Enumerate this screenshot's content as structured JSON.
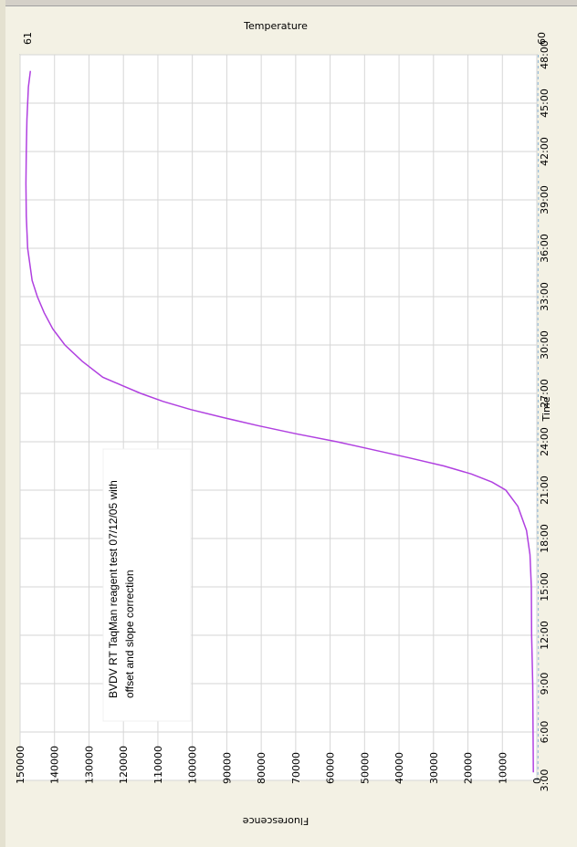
{
  "chart_data": {
    "type": "line",
    "orientation": "rotated-90",
    "xlabel": "Time",
    "ylabel": "Fluorescence",
    "secondary_axis_label": "Temperature",
    "secondary_axis_ticks": [
      "61",
      "60"
    ],
    "annotation": [
      "BVDV RT TaqMan reagent test 07/12/05 with",
      "offset and slope correction"
    ],
    "x_ticks": [
      "3:00",
      "6:00",
      "9:00",
      "12:00",
      "15:00",
      "18:00",
      "21:00",
      "24:00",
      "27:00",
      "30:00",
      "33:00",
      "36:00",
      "39:00",
      "42:00",
      "45:00",
      "48:00"
    ],
    "y_ticks": [
      "0",
      "10000",
      "20000",
      "30000",
      "40000",
      "50000",
      "60000",
      "70000",
      "80000",
      "90000",
      "100000",
      "110000",
      "120000",
      "130000",
      "140000",
      "150000"
    ],
    "xlim": [
      3,
      48
    ],
    "ylim": [
      0,
      150000
    ],
    "grid": true,
    "series": [
      {
        "color": "#b040e0",
        "x": [
          3.5,
          9,
          12,
          15,
          17,
          18.5,
          20,
          21,
          21.5,
          22,
          22.5,
          23,
          23.5,
          24,
          24.5,
          25,
          25.5,
          26,
          26.5,
          27,
          27.5,
          28,
          29,
          30,
          31,
          32,
          33,
          34,
          36,
          38,
          40,
          42,
          44,
          46,
          47
        ],
        "y": [
          1000,
          1200,
          1500,
          1600,
          2000,
          3000,
          5500,
          9000,
          13000,
          19000,
          27000,
          37000,
          47500,
          58000,
          70000,
          81000,
          91000,
          100500,
          108500,
          115000,
          120500,
          126000,
          132000,
          137000,
          140500,
          143000,
          145000,
          146500,
          147800,
          148200,
          148300,
          148200,
          148000,
          147600,
          147000
        ]
      },
      {
        "color": "#8ab4d8",
        "style": "dashed",
        "x": [
          3,
          9,
          15,
          21,
          27,
          33,
          39,
          45,
          48
        ],
        "y": [
          -300,
          -500,
          -400,
          -200,
          -400,
          -300,
          -500,
          -300,
          -400
        ]
      }
    ]
  }
}
